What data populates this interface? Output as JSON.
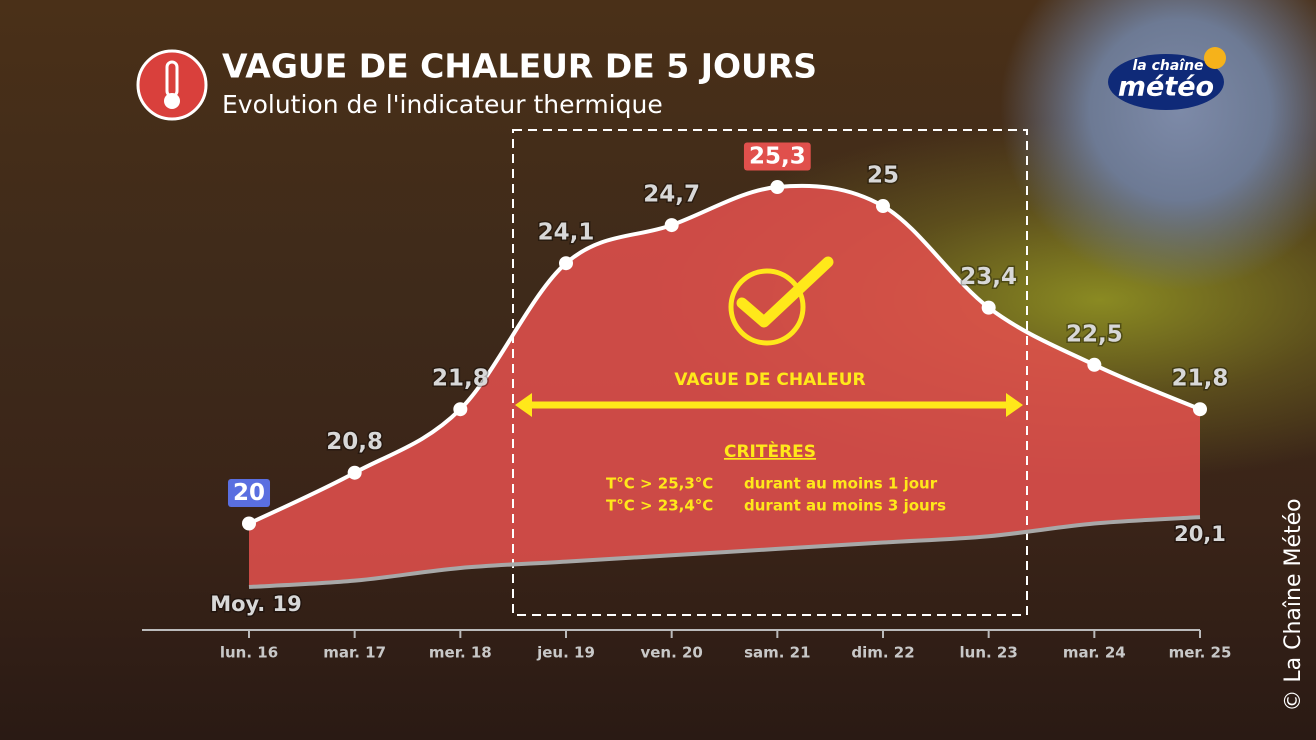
{
  "chart_data": {
    "type": "area-line",
    "title": "VAGUE DE CHALEUR DE 5 JOURS",
    "subtitle": "Evolution de l'indicateur thermique",
    "categories": [
      "lun. 16",
      "mar. 17",
      "mer. 18",
      "jeu. 19",
      "ven. 20",
      "sam. 21",
      "dim. 22",
      "lun. 23",
      "mar. 24",
      "mer. 25"
    ],
    "series": [
      {
        "color": "#ffffff",
        "fill": "#e0504c",
        "values": [
          20,
          20.8,
          21.8,
          24.1,
          24.7,
          25.3,
          25,
          23.4,
          22.5,
          21.8
        ],
        "value_labels": [
          "20",
          "20,8",
          "21,8",
          "24,1",
          "24,7",
          "25,3",
          "25",
          "23,4",
          "22,5",
          "21,8"
        ],
        "badges": [
          {
            "index": 0,
            "color": "#5a6fe0"
          },
          {
            "index": 5,
            "color": "#e0504c"
          }
        ]
      },
      {
        "color": "#a8a8a8",
        "values": [
          19,
          19.1,
          19.3,
          19.4,
          19.5,
          19.6,
          19.7,
          19.8,
          20,
          20.1
        ],
        "value_labels": [
          "Moy. 19",
          null,
          null,
          null,
          null,
          null,
          null,
          null,
          null,
          "20,1"
        ]
      }
    ],
    "annotations": {
      "band_label": "VAGUE DE CHALEUR",
      "criteria_title": "CRITÈRES",
      "criteria": [
        [
          "T°C > 25,3°C",
          "durant au moins 1 jour"
        ],
        [
          "T°C > 23,4°C",
          "durant au moins 3 jours"
        ]
      ]
    },
    "logo": {
      "line1": "la chaîne",
      "line2": "météo"
    },
    "copyright": "© La Chaîne Météo"
  }
}
